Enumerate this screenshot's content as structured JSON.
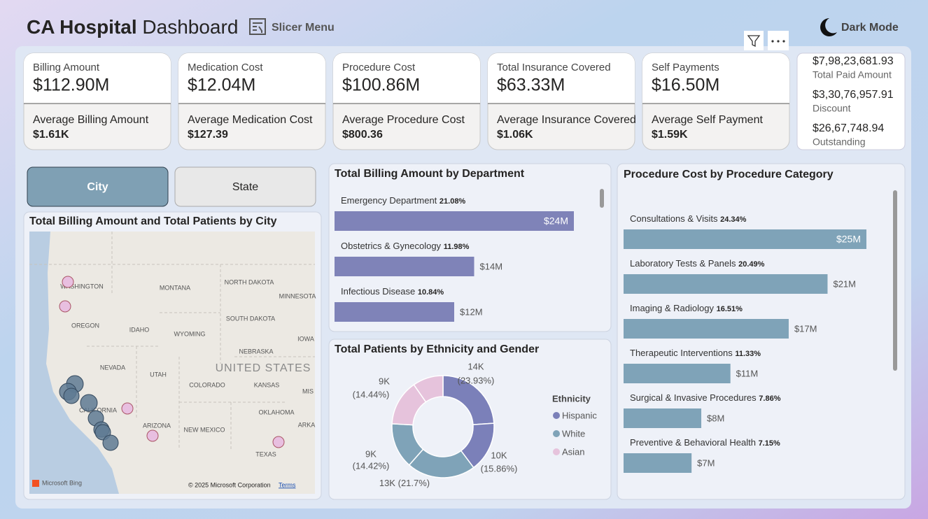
{
  "header": {
    "title_bold": "CA Hospital",
    "title_rest": "Dashboard",
    "slicer": "Slicer Menu",
    "dark_mode": "Dark Mode"
  },
  "kpis": [
    {
      "label": "Billing Amount",
      "value": "$112.90M",
      "avg_label": "Average Billing Amount",
      "avg_value": "$1.61K"
    },
    {
      "label": "Medication Cost",
      "value": "$12.04M",
      "avg_label": "Average Medication Cost",
      "avg_value": "$127.39"
    },
    {
      "label": "Procedure Cost",
      "value": "$100.86M",
      "avg_label": "Average Procedure Cost",
      "avg_value": "$800.36"
    },
    {
      "label": "Total Insurance Covered",
      "value": "$63.33M",
      "avg_label": "Average Insurance Covered",
      "avg_value": "$1.06K"
    },
    {
      "label": "Self Payments",
      "value": "$16.50M",
      "avg_label": "Average Self Payment",
      "avg_value": "$1.59K"
    }
  ],
  "summary": [
    {
      "value": "$7,98,23,681.93",
      "label": "Total Paid Amount"
    },
    {
      "value": "$3,30,76,957.91",
      "label": "Discount"
    },
    {
      "value": "$26,67,748.94",
      "label": "Outstanding"
    }
  ],
  "toggles": [
    "City",
    "State"
  ],
  "map": {
    "title": "Total Billing Amount and Total Patients by City",
    "places": [
      "WASHINGTON",
      "MONTANA",
      "NORTH DAKOTA",
      "MINNESOTA",
      "OREGON",
      "IDAHO",
      "WYOMING",
      "SOUTH DAKOTA",
      "IOWA",
      "NEBRASKA",
      "NEVADA",
      "UNITED STATES",
      "UTAH",
      "COLORADO",
      "KANSAS",
      "CALIFORNIA",
      "MIS",
      "ARIZONA",
      "NEW MEXICO",
      "OKLAHOMA",
      "ARKA",
      "TEXAS"
    ],
    "brand": "Microsoft Bing",
    "copyright": "© 2025 Microsoft Corporation",
    "terms": "Terms"
  },
  "chart_data": [
    {
      "type": "bar",
      "title": "Total Billing Amount by Department",
      "categories": [
        "Emergency Department",
        "Obstetrics & Gynecology",
        "Infectious Disease"
      ],
      "values": [
        24,
        14,
        12
      ],
      "value_labels": [
        "$24M",
        "$14M",
        "$12M"
      ],
      "shares": [
        21.08,
        11.98,
        10.84
      ],
      "share_labels": [
        "21.08%",
        "11.98%",
        "10.84%"
      ],
      "color": "#7f83b8"
    },
    {
      "type": "bar",
      "title": "Procedure Cost by Procedure Category",
      "categories": [
        "Consultations & Visits",
        "Laboratory Tests & Panels",
        "Imaging & Radiology",
        "Therapeutic Interventions",
        "Surgical & Invasive Procedures",
        "Preventive & Behavioral Health"
      ],
      "values": [
        25,
        21,
        17,
        11,
        8,
        7
      ],
      "value_labels": [
        "$25M",
        "$21M",
        "$17M",
        "$11M",
        "$8M",
        "$7M"
      ],
      "shares": [
        24.34,
        20.49,
        16.51,
        11.33,
        7.86,
        7.15
      ],
      "share_labels": [
        "24.34%",
        "20.49%",
        "16.51%",
        "11.33%",
        "7.86%",
        "7.15%"
      ],
      "color": "#7fa3b8"
    },
    {
      "type": "donut",
      "title": "Total Patients by Ethnicity and Gender",
      "legend_title": "Ethnicity",
      "series": [
        {
          "name": "Hispanic",
          "color": "#7b80b9",
          "values": [
            23.93,
            15.86
          ],
          "value_labels": [
            "14K",
            "10K"
          ],
          "share_labels": [
            "(23.93%)",
            "(15.86%)"
          ]
        },
        {
          "name": "White",
          "color": "#7fa3b8",
          "values": [
            21.7,
            14.42
          ],
          "value_labels": [
            "13K",
            "9K"
          ],
          "share_labels": [
            "(21.7%)",
            "(14.42%)"
          ]
        },
        {
          "name": "Asian",
          "color": "#e6c3dc",
          "values": [
            14.44,
            9.65
          ],
          "value_labels": [
            "9K",
            null
          ],
          "share_labels": [
            "(14.44%)",
            null
          ]
        }
      ]
    }
  ]
}
